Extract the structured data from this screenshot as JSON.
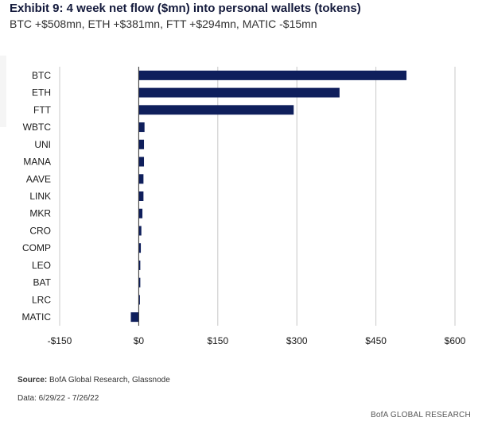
{
  "header": {
    "title": "Exhibit 9: 4 week net flow ($mn) into personal wallets (tokens)",
    "subtitle": "BTC +$508mn, ETH +$381mn, FTT +$294mn, MATIC -$15mn"
  },
  "footer": {
    "source_label": "Source:",
    "source_text": " BofA Global Research, Glassnode",
    "data_range": "Data: 6/29/22 - 7/26/22",
    "brand": "BofA GLOBAL RESEARCH"
  },
  "colors": {
    "bar": "#0f1f5c",
    "grid": "#c8c8c8",
    "axis": "#333333"
  },
  "chart_data": {
    "type": "bar",
    "orientation": "horizontal",
    "title": "Exhibit 9: 4 week net flow ($mn) into personal wallets (tokens)",
    "subtitle": "BTC +$508mn, ETH +$381mn, FTT +$294mn, MATIC -$15mn",
    "categories": [
      "BTC",
      "ETH",
      "FTT",
      "WBTC",
      "UNI",
      "MANA",
      "AAVE",
      "LINK",
      "MKR",
      "CRO",
      "COMP",
      "LEO",
      "BAT",
      "LRC",
      "MATIC"
    ],
    "values": [
      508,
      381,
      294,
      11,
      10,
      10,
      9,
      9,
      7,
      5,
      4,
      3,
      3,
      2,
      -15
    ],
    "xlim": [
      -150,
      600
    ],
    "xticks": [
      -150,
      0,
      150,
      300,
      450,
      600
    ],
    "xtick_labels": [
      "-$150",
      "$0",
      "$150",
      "$300",
      "$450",
      "$600"
    ],
    "grid": "vertical",
    "legend": "none"
  }
}
